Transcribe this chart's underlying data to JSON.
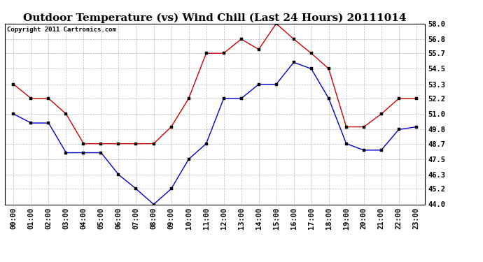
{
  "title": "Outdoor Temperature (vs) Wind Chill (Last 24 Hours) 20111014",
  "copyright": "Copyright 2011 Cartronics.com",
  "hours": [
    "00:00",
    "01:00",
    "02:00",
    "03:00",
    "04:00",
    "05:00",
    "06:00",
    "07:00",
    "08:00",
    "09:00",
    "10:00",
    "11:00",
    "12:00",
    "13:00",
    "14:00",
    "15:00",
    "16:00",
    "17:00",
    "18:00",
    "19:00",
    "20:00",
    "21:00",
    "22:00",
    "23:00"
  ],
  "temp": [
    53.3,
    52.2,
    52.2,
    51.0,
    48.7,
    48.7,
    48.7,
    48.7,
    48.7,
    50.0,
    52.2,
    55.7,
    55.7,
    56.8,
    56.0,
    58.0,
    56.8,
    55.7,
    54.5,
    50.0,
    50.0,
    51.0,
    52.2,
    52.2
  ],
  "windchill": [
    51.0,
    50.3,
    50.3,
    48.0,
    48.0,
    48.0,
    46.3,
    45.2,
    44.0,
    45.2,
    47.5,
    48.7,
    52.2,
    52.2,
    53.3,
    53.3,
    55.0,
    54.5,
    52.2,
    48.7,
    48.2,
    48.2,
    49.8,
    50.0
  ],
  "temp_color": "#cc0000",
  "windchill_color": "#0000cc",
  "ylim": [
    44.0,
    58.0
  ],
  "yticks": [
    44.0,
    45.2,
    46.3,
    47.5,
    48.7,
    49.8,
    51.0,
    52.2,
    53.3,
    54.5,
    55.7,
    56.8,
    58.0
  ],
  "bg_color": "#ffffff",
  "plot_bg": "#ffffff",
  "grid_color": "#bbbbbb",
  "title_fontsize": 11,
  "tick_fontsize": 7.5,
  "copyright_fontsize": 6.5
}
